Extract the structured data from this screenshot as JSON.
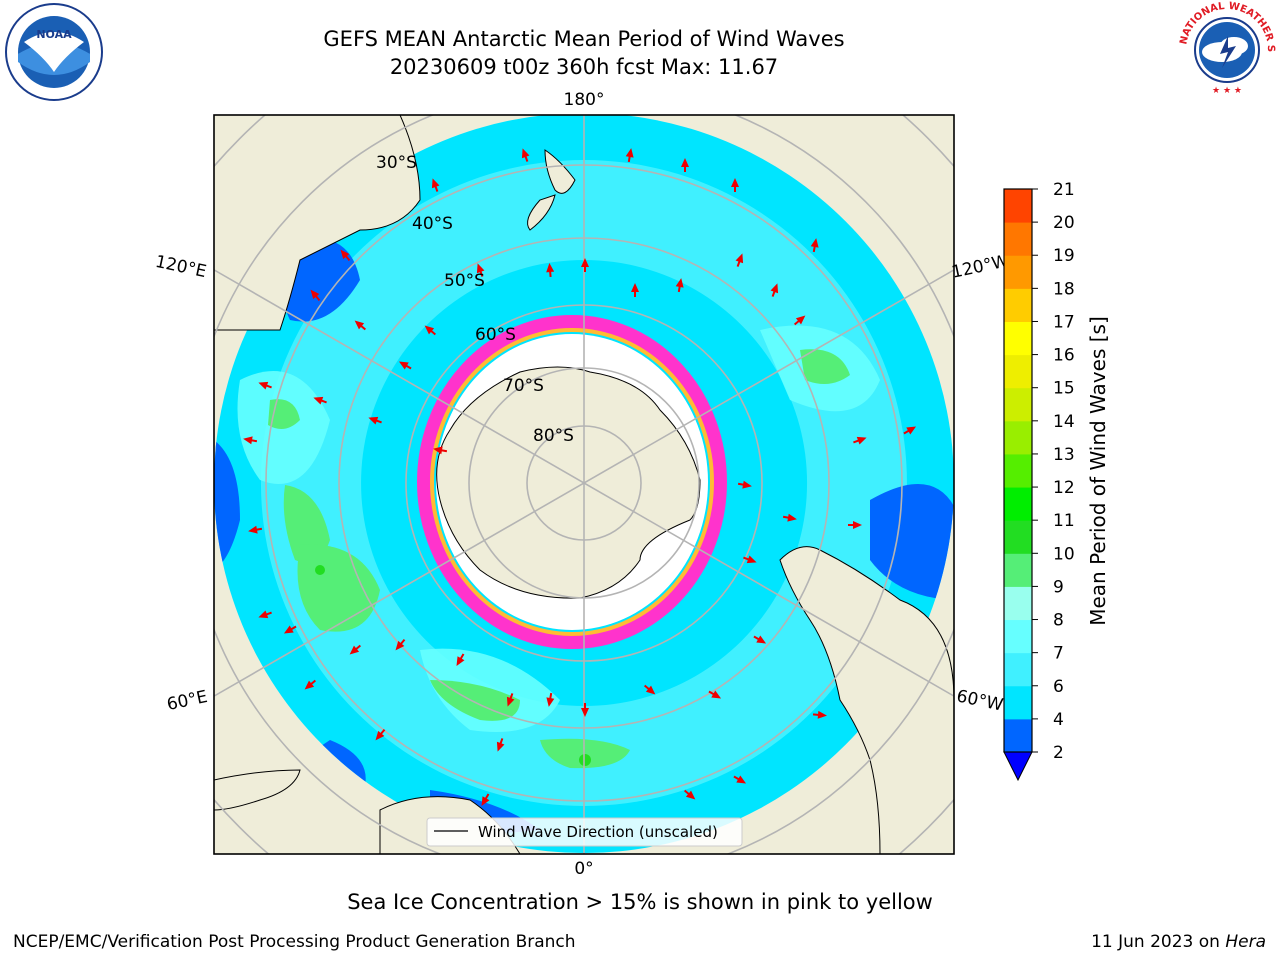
{
  "title_line1": "GEFS MEAN Antarctic Mean Period of Wind Waves",
  "title_line2": "20230609 t00z 360h fcst   Max: 11.67",
  "logos": {
    "left": "noaa-logo",
    "right": "nws-logo",
    "left_text": "NOAA",
    "right_text": "NATIONAL WEATHER SERVICE"
  },
  "map": {
    "projection": "south-polar-stereographic",
    "longitude_labels": {
      "top": "180°",
      "bottom": "0°",
      "upper_left": "120°E",
      "upper_right": "120°W",
      "lower_left": "60°E",
      "lower_right": "60°W"
    },
    "latitude_labels": [
      "30°S",
      "40°S",
      "50°S",
      "60°S",
      "70°S",
      "80°S"
    ],
    "legend": "Wind Wave Direction (unscaled)"
  },
  "colorbar": {
    "label": "Mean Period of Wind Waves [s]",
    "ticks": [
      "2",
      "4",
      "6",
      "7",
      "8",
      "9",
      "10",
      "11",
      "12",
      "13",
      "14",
      "15",
      "16",
      "17",
      "18",
      "19",
      "20",
      "21"
    ],
    "tick_values": [
      2,
      4,
      6,
      7,
      8,
      9,
      10,
      11,
      12,
      13,
      14,
      15,
      16,
      17,
      18,
      19,
      20,
      21
    ],
    "colors": [
      "#0066ff",
      "#00e5ff",
      "#40f0ff",
      "#66ffff",
      "#99ffee",
      "#55ee77",
      "#22dd22",
      "#00ee00",
      "#55ee00",
      "#99ee00",
      "#ccee00",
      "#eeee00",
      "#ffff00",
      "#ffcc00",
      "#ff9900",
      "#ff7700",
      "#ff4400",
      "#ff0000"
    ],
    "under_color": "#0000ff"
  },
  "bottom_note": "Sea Ice Concentration > 15% is shown in pink to yellow",
  "footer_left": "NCEP/EMC/Verification Post Processing Product Generation Branch",
  "footer_right_date": "11 Jun 2023 on ",
  "footer_right_host": "Hera"
}
